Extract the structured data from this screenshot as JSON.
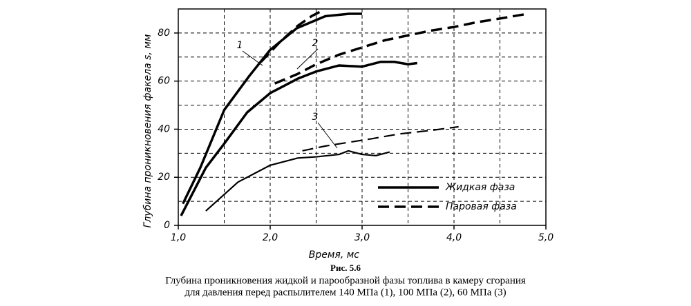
{
  "chart_data": {
    "type": "line",
    "ylabel": "Глубина проникновения факела s, мм",
    "xlabel": "Время, мс",
    "xlim": [
      1,
      5
    ],
    "ylim": [
      0,
      90
    ],
    "xticks": [
      {
        "value": 1,
        "label": "1,0"
      },
      {
        "value": 2,
        "label": "2,0"
      },
      {
        "value": 3,
        "label": "3,0"
      },
      {
        "value": 4,
        "label": "4,0"
      },
      {
        "value": 5,
        "label": "5,0"
      }
    ],
    "yticks": [
      0,
      20,
      40,
      60,
      80
    ],
    "xgrid": [
      1.5,
      2,
      2.5,
      3,
      3.5,
      4,
      4.5
    ],
    "ygrid": [
      10,
      20,
      30,
      40,
      50,
      60,
      70,
      80
    ],
    "legend": [
      {
        "label": "Жидкая фаза",
        "style": "solid"
      },
      {
        "label": "Паровая фаза",
        "style": "dashed"
      }
    ],
    "series": [
      {
        "label": "1",
        "style": "solid",
        "color": "#000",
        "width": 3.5,
        "x": [
          1.05,
          1.24,
          1.5,
          1.77,
          2.0,
          2.29,
          2.6,
          2.86,
          3.0
        ],
        "values": [
          9,
          24,
          48,
          62,
          73,
          82,
          87,
          88,
          88
        ]
      },
      {
        "label": "1",
        "style": "dashed",
        "color": "#000",
        "width": 3.5,
        "x": [
          1.9,
          2.1,
          2.3,
          2.45,
          2.55
        ],
        "values": [
          68,
          76,
          83,
          87,
          89
        ]
      },
      {
        "label": "2",
        "style": "solid",
        "color": "#000",
        "width": 3.5,
        "x": [
          1.03,
          1.3,
          1.5,
          1.75,
          2.0,
          2.3,
          2.5,
          2.75,
          3.0,
          3.2,
          3.35,
          3.5,
          3.6
        ],
        "values": [
          4,
          24,
          34,
          47,
          55,
          61,
          64,
          66.5,
          66,
          68,
          68,
          67,
          67.5
        ]
      },
      {
        "label": "2",
        "style": "dashed",
        "color": "#000",
        "width": 3.5,
        "x": [
          2.05,
          2.3,
          2.5,
          2.75,
          3.0,
          3.25,
          3.5,
          3.75,
          4.0,
          4.25,
          4.5,
          4.8
        ],
        "values": [
          59,
          63,
          67,
          71,
          74,
          77,
          79,
          81,
          82.5,
          84.5,
          86,
          88
        ]
      },
      {
        "label": "3",
        "style": "solid",
        "color": "#000",
        "width": 2.2,
        "x": [
          1.3,
          1.65,
          1.8,
          2.0,
          2.2,
          2.3,
          2.5,
          2.75,
          2.85,
          3.0,
          3.15,
          3.3
        ],
        "values": [
          6,
          18,
          21,
          25,
          27,
          28,
          28.5,
          29.5,
          31,
          29.5,
          29,
          30.5
        ]
      },
      {
        "label": "3",
        "style": "dashed",
        "color": "#000",
        "width": 2.2,
        "x": [
          2.35,
          2.6,
          2.85,
          3.1,
          3.4,
          3.75,
          4.05
        ],
        "values": [
          31,
          33,
          34.5,
          36,
          38,
          39.5,
          41
        ]
      }
    ],
    "caption": {
      "title": "Рис. 5.6",
      "lines": [
        "Глубина проникновения жидкой и парообразной фазы топлива в камеру сгорания",
        "для давления перед распылителем 140 МПа (1), 100 МПа (2), 60 МПа (3)"
      ]
    }
  }
}
